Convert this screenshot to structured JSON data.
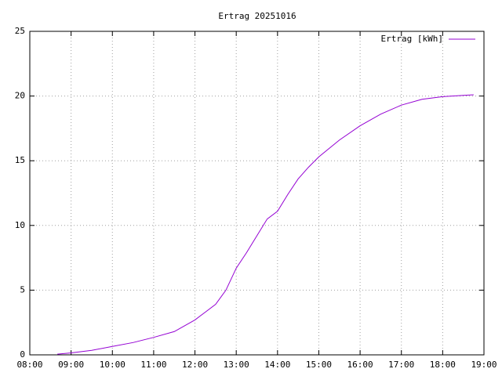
{
  "chart_data": {
    "type": "line",
    "title": "Ertrag 20251016",
    "x": [
      "08:40",
      "09:00",
      "09:30",
      "10:00",
      "10:30",
      "11:00",
      "11:30",
      "12:00",
      "12:15",
      "12:30",
      "12:45",
      "13:00",
      "13:15",
      "13:30",
      "13:45",
      "14:00",
      "14:15",
      "14:30",
      "14:45",
      "15:00",
      "15:30",
      "16:00",
      "16:30",
      "17:00",
      "17:30",
      "18:00",
      "18:30",
      "18:45"
    ],
    "series": [
      {
        "name": "Ertrag [kWh]",
        "color": "#9400d3",
        "values": [
          0.05,
          0.15,
          0.35,
          0.65,
          0.95,
          1.35,
          1.8,
          2.7,
          3.3,
          3.9,
          5.0,
          6.7,
          7.9,
          9.2,
          10.5,
          11.1,
          12.4,
          13.6,
          14.5,
          15.3,
          16.6,
          17.7,
          18.6,
          19.3,
          19.75,
          19.95,
          20.05,
          20.1
        ]
      }
    ],
    "xlim": [
      "08:00",
      "19:00"
    ],
    "xticks": [
      "08:00",
      "09:00",
      "10:00",
      "11:00",
      "12:00",
      "13:00",
      "14:00",
      "15:00",
      "16:00",
      "17:00",
      "18:00",
      "19:00"
    ],
    "ylim": [
      0,
      25
    ],
    "yticks": [
      0,
      5,
      10,
      15,
      20,
      25
    ],
    "grid": true,
    "legend": "top-right"
  }
}
